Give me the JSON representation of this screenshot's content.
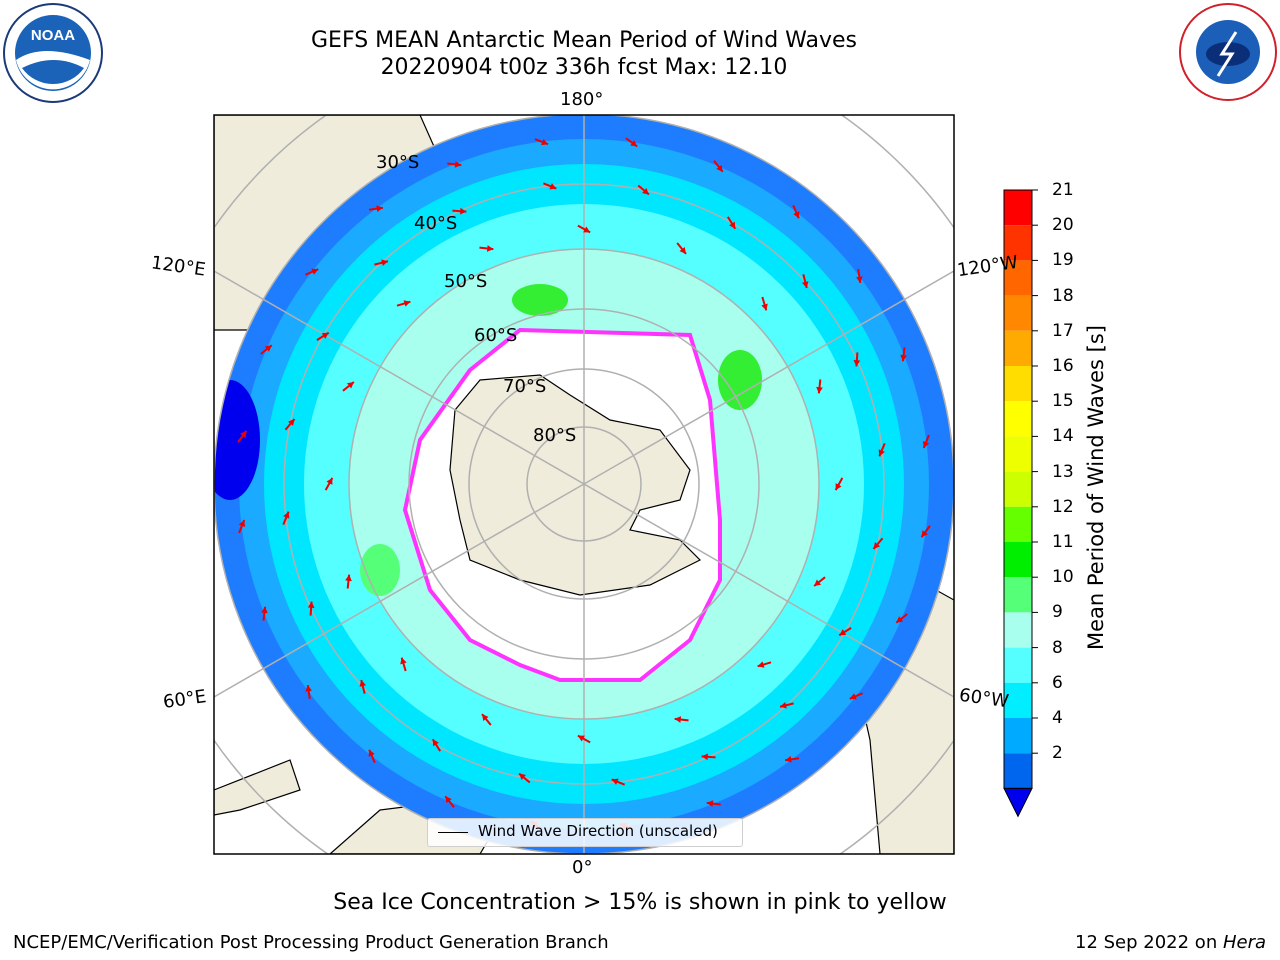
{
  "title": {
    "line1": "GEFS MEAN Antarctic Mean Period of Wind Waves",
    "line2": "20220904 t00z 336h fcst   Max: 12.10"
  },
  "logos": {
    "left": "NOAA",
    "right": "NATIONAL WEATHER SERVICE"
  },
  "map": {
    "projection": "south-polar-stereographic",
    "longitude_labels": {
      "top": "180°",
      "bottom": "0°",
      "upper_left": "120°E",
      "lower_left": "60°E",
      "upper_right": "120°W",
      "lower_right": "60°W"
    },
    "latitude_labels": [
      "30°S",
      "40°S",
      "50°S",
      "60°S",
      "70°S",
      "80°S"
    ],
    "legend": "Wind Wave Direction (unscaled)",
    "arrow_color": "#ee0000",
    "land_color": "#efecdc",
    "sea_ice_colors": [
      "#ff33ff",
      "#ffcc33"
    ]
  },
  "colorbar": {
    "label": "Mean Period of Wind Waves [s]",
    "ticks": [
      "21",
      "20",
      "19",
      "18",
      "17",
      "16",
      "15",
      "14",
      "13",
      "12",
      "11",
      "10",
      "9",
      "8",
      "6",
      "4",
      "2"
    ],
    "colors": [
      "#ff0000",
      "#ff3300",
      "#ff6600",
      "#ff8800",
      "#ffaa00",
      "#ffdd00",
      "#ffff00",
      "#eeff00",
      "#ccff00",
      "#66ff00",
      "#00ee00",
      "#55ff77",
      "#a8ffee",
      "#55ffff",
      "#00eeff",
      "#00aaff",
      "#0066ee"
    ],
    "extend_color": "#0000ee"
  },
  "caption": "Sea Ice Concentration > 15% is shown in pink to yellow",
  "footer": {
    "left": "NCEP/EMC/Verification Post Processing Product Generation Branch",
    "right_date": "12 Sep 2022 on ",
    "right_machine": "Hera"
  }
}
